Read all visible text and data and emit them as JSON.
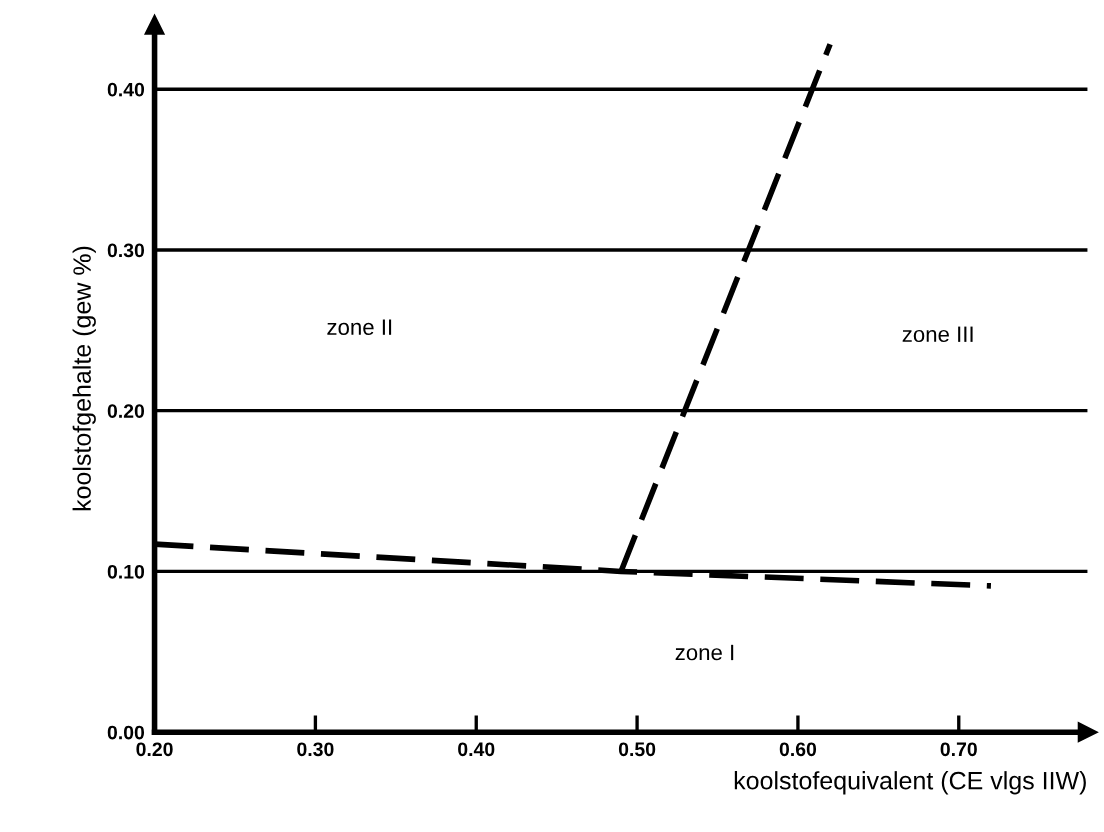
{
  "chart_data": {
    "type": "line",
    "xlabel": "koolstofequivalent (CE vlgs IIW)",
    "ylabel": "koolstofgehalte (gew %)",
    "series": [
      {
        "x": [
          0.2,
          0.49,
          0.72
        ],
        "values": [
          0.117,
          0.1,
          0.091
        ],
        "color": "#000000"
      },
      {
        "x": [
          0.49,
          0.62
        ],
        "values": [
          0.1,
          0.428
        ],
        "color": "#000000"
      }
    ],
    "line_style": "dashed",
    "marker": "none",
    "grid": "y",
    "xlim": [
      0.2,
      0.78
    ],
    "ylim": [
      0,
      0.44
    ],
    "xticks": [
      {
        "value": 0.2,
        "label": "0.20"
      },
      {
        "value": 0.3,
        "label": "0.30"
      },
      {
        "value": 0.4,
        "label": "0.40"
      },
      {
        "value": 0.5,
        "label": "0.50"
      },
      {
        "value": 0.6,
        "label": "0.60"
      },
      {
        "value": 0.7,
        "label": "0.70"
      }
    ],
    "yticks": [
      {
        "value": 0,
        "label": "0.00"
      },
      {
        "value": 0.1,
        "label": "0.10"
      },
      {
        "value": 0.2,
        "label": "0.20"
      },
      {
        "value": 0.3,
        "label": "0.30"
      },
      {
        "value": 0.4,
        "label": "0.40"
      }
    ],
    "annotations": [
      "zone I",
      "zone II",
      "zone III"
    ]
  }
}
